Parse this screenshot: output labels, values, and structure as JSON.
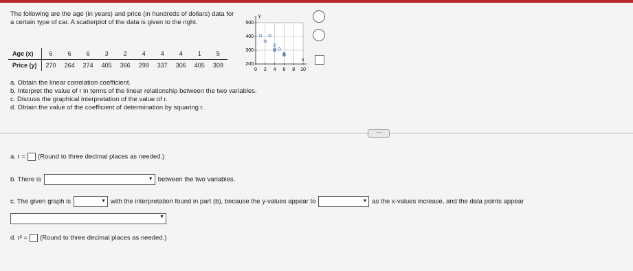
{
  "problem": {
    "text": "The following are the age (in years) and price (in hundreds of dollars) data for a certain type of car. A scatterplot of the data is given to the right.",
    "table": {
      "row_headers": [
        "Age (x)",
        "Price (y)"
      ],
      "age": [
        6,
        6,
        6,
        3,
        2,
        4,
        4,
        4,
        1,
        5
      ],
      "price": [
        270,
        264,
        274,
        405,
        366,
        299,
        337,
        306,
        405,
        309
      ]
    },
    "questions": [
      "a. Obtain the linear correlation coefficient.",
      "b. Interpret the value of r in terms of the linear relationship between the two variables.",
      "c. Discuss the graphical interpretation of the value of r.",
      "d. Obtain the value of the coefficient of determination by squaring r."
    ]
  },
  "scatterplot": {
    "x_label": "x",
    "y_label": "y",
    "xlim": [
      0,
      10
    ],
    "ylim": [
      200,
      500
    ],
    "xticks": [
      0,
      2,
      4,
      6,
      8,
      10
    ],
    "yticks": [
      200,
      300,
      400,
      500
    ],
    "grid": true
  },
  "answers": {
    "a": {
      "prefix": "a. r =",
      "note": "(Round to three decimal places as needed.)"
    },
    "b": {
      "prefix": "b. There is",
      "suffix": "between the two variables."
    },
    "c": {
      "prefix": "c. The given graph is",
      "middle": "with the interpretation found in part (b), because the y-values appear to",
      "suffix": "as the x-values increase, and the data points appear"
    },
    "d": {
      "prefix": "d. r² =",
      "note": "(Round to three decimal places as needed.)"
    }
  }
}
